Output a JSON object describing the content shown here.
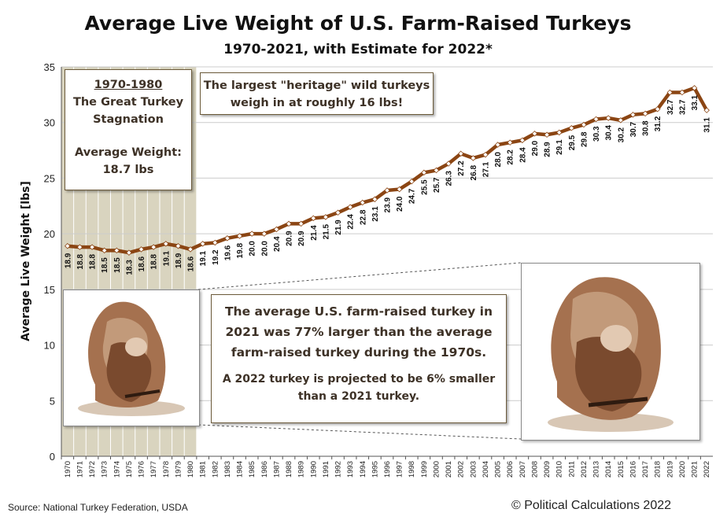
{
  "chart_data": {
    "type": "line",
    "title": "Average Live Weight of U.S. Farm-Raised Turkeys",
    "subtitle": "1970-2021, with Estimate for 2022*",
    "ylabel": "Average Live Weight [lbs]",
    "xlabel": "",
    "ylim": [
      0,
      35
    ],
    "yticks": [
      0,
      5,
      10,
      15,
      20,
      25,
      30,
      35
    ],
    "grid": "horizontal",
    "highlight_range": [
      "1970",
      "1980"
    ],
    "series": [
      {
        "name": "Average Live Weight",
        "color": "#8b4513",
        "x": [
          "1970",
          "1971",
          "1972",
          "1973",
          "1974",
          "1975",
          "1976",
          "1977",
          "1978",
          "1979",
          "1980",
          "1981",
          "1982",
          "1983",
          "1984",
          "1985",
          "1986",
          "1987",
          "1988",
          "1989",
          "1990",
          "1991",
          "1992",
          "1993",
          "1994",
          "1995",
          "1996",
          "1997",
          "1998",
          "1999",
          "2000",
          "2001",
          "2002",
          "2003",
          "2004",
          "2005",
          "2006",
          "2007",
          "2008",
          "2009",
          "2010",
          "2011",
          "2012",
          "2013",
          "2014",
          "2015",
          "2016",
          "2017",
          "2018",
          "2019",
          "2020",
          "2021",
          "2022"
        ],
        "values": [
          18.9,
          18.8,
          18.8,
          18.5,
          18.5,
          18.3,
          18.6,
          18.8,
          19.1,
          18.9,
          18.6,
          19.1,
          19.2,
          19.6,
          19.8,
          20.0,
          20.0,
          20.4,
          20.9,
          20.9,
          21.4,
          21.5,
          21.9,
          22.4,
          22.8,
          23.1,
          23.9,
          24.0,
          24.7,
          25.5,
          25.7,
          26.3,
          27.2,
          26.8,
          27.1,
          28.0,
          28.2,
          28.4,
          29.0,
          28.9,
          29.1,
          29.5,
          29.8,
          30.3,
          30.4,
          30.2,
          30.7,
          30.8,
          31.2,
          32.7,
          32.7,
          33.1,
          31.1
        ],
        "labels": [
          "18.9",
          "18.8",
          "18.8",
          "18.5",
          "18.5",
          "18.3",
          "18.6",
          "18.8",
          "19.1",
          "18.9",
          "18.6",
          "19.1",
          "19.2",
          "19.6",
          "19.8",
          "20.0",
          "20.0",
          "20.4",
          "20.9",
          "20.9",
          "21.4",
          "21.5",
          "21.9",
          "22.4",
          "22.8",
          "23.1",
          "23.9",
          "24.0",
          "24.7",
          "25.5",
          "25.7",
          "26.3",
          "27.2",
          "26.8",
          "27.1",
          "28.0",
          "28.2",
          "28.4",
          "29.0",
          "28.9",
          "29.1",
          "29.5",
          "29.8",
          "30.3",
          "30.4",
          "30.2",
          "30.7",
          "30.8",
          "31.2",
          "32.7",
          "32.7",
          "33.1",
          "31.1"
        ]
      }
    ],
    "colors": {
      "line": "#8b4513",
      "marker_fill": "#ffffff",
      "highlight": "#d9d4bf",
      "grid": "#cccccc"
    }
  },
  "annotations": {
    "stagnation": {
      "heading": "1970-1980",
      "line1": "The Great Turkey",
      "line2": "Stagnation",
      "line3": "Average Weight:",
      "line4": "18.7 lbs"
    },
    "heritage": {
      "line1": "The largest \"heritage\" wild turkeys",
      "line2": "weigh in at roughly 16 lbs!"
    },
    "main": {
      "line1": "The average U.S. farm-raised  turkey in",
      "line2": "2021 was 77% larger than the average",
      "line3": "farm-raised  turkey during the 1970s.",
      "line4": "A 2022 turkey is projected to be 6% smaller",
      "line5": "than a 2021 turkey."
    }
  },
  "footer": {
    "source": "Source: National Turkey Federation, USDA",
    "credit": "© Political Calculations 2022"
  }
}
